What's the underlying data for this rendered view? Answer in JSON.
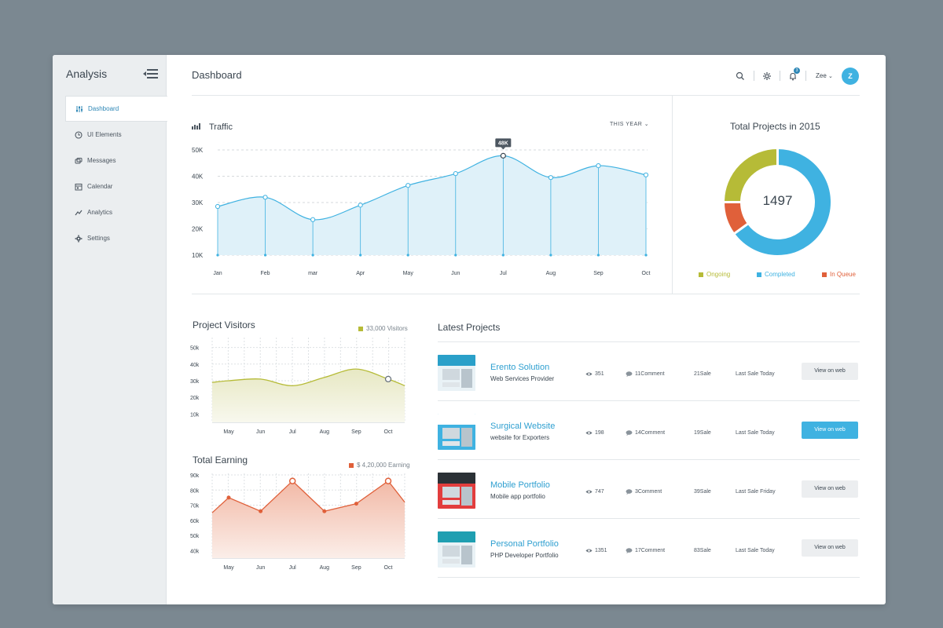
{
  "sidebar": {
    "brand": "Analysis",
    "items": [
      {
        "label": "Dashboard",
        "icon": "sliders-icon"
      },
      {
        "label": "UI Elements",
        "icon": "clock-icon"
      },
      {
        "label": "Messages",
        "icon": "chat-icon"
      },
      {
        "label": "Calendar",
        "icon": "calendar-icon"
      },
      {
        "label": "Analytics",
        "icon": "trend-icon"
      },
      {
        "label": "Settings",
        "icon": "gear-icon"
      }
    ],
    "active_index": 0
  },
  "header": {
    "title": "Dashboard",
    "notification_count": "3",
    "user_name": "Zee",
    "avatar_initial": "Z"
  },
  "traffic": {
    "title": "Traffic",
    "period": "THIS YEAR",
    "tooltip": "48K"
  },
  "total_projects": {
    "title": "Total Projects in 2015",
    "total": "1497",
    "legend": [
      {
        "label": "Ongoing",
        "color": "#b6bb37"
      },
      {
        "label": "Completed",
        "color": "#3fb2e1"
      },
      {
        "label": "In Queue",
        "color": "#e0603a"
      }
    ]
  },
  "visitors": {
    "title": "Project Visitors",
    "legend": "33,000 Visitors"
  },
  "earning": {
    "title": "Total Earning",
    "legend": "$ 4,20,000 Earning"
  },
  "latest": {
    "title": "Latest Projects",
    "projects": [
      {
        "name": "Erento Solution",
        "sub": "Web Services Provider",
        "views": "351",
        "comments": "11Comment",
        "sales": "21Sale",
        "last": "Last Sale Today",
        "button": "View on web",
        "primary": false
      },
      {
        "name": "Surgical Website",
        "sub": "website for Exporters",
        "views": "198",
        "comments": "14Comment",
        "sales": "19Sale",
        "last": "Last Sale Today",
        "button": "View on web",
        "primary": true
      },
      {
        "name": "Mobile Portfolio",
        "sub": "Mobile app portfolio",
        "views": "747",
        "comments": "3Comment",
        "sales": "39Sale",
        "last": "Last Sale Friday",
        "button": "View on web",
        "primary": false
      },
      {
        "name": "Personal Portfolio",
        "sub": "PHP Developer Portfolio",
        "views": "1351",
        "comments": "17Comment",
        "sales": "83Sale",
        "last": "Last Sale Today",
        "button": "View on web",
        "primary": false
      }
    ]
  },
  "chart_data": [
    {
      "type": "area",
      "title": "Traffic",
      "categories": [
        "Jan",
        "Feb",
        "mar",
        "Apr",
        "May",
        "Jun",
        "Jul",
        "Aug",
        "Sep",
        "Oct"
      ],
      "values": [
        28.5,
        32,
        23.5,
        29,
        36.5,
        41,
        47.8,
        39.5,
        44,
        40.5
      ],
      "y_ticks": [
        "10K",
        "20K",
        "30K",
        "40K",
        "50K"
      ],
      "ylim": [
        10,
        50
      ],
      "color": "#3fb2e1"
    },
    {
      "type": "pie",
      "title": "Total Projects in 2015",
      "labels": [
        "Completed",
        "In Queue",
        "Ongoing"
      ],
      "values": [
        65,
        10,
        25
      ],
      "colors": [
        "#3fb2e1",
        "#e0603a",
        "#b6bb37"
      ]
    },
    {
      "type": "area",
      "title": "Project Visitors",
      "categories": [
        "May",
        "Jun",
        "Jul",
        "Aug",
        "Sep",
        "Oct"
      ],
      "values": [
        30,
        31,
        27,
        32,
        37,
        31
      ],
      "y_ticks": [
        "10k",
        "20k",
        "30k",
        "40k",
        "50k"
      ],
      "ylim": [
        5,
        55
      ],
      "color": "#b6bb37"
    },
    {
      "type": "area",
      "title": "Total Earning",
      "categories": [
        "May",
        "Jun",
        "Jul",
        "Aug",
        "Sep",
        "Oct"
      ],
      "values": [
        75,
        66,
        86,
        66,
        71,
        86
      ],
      "y_ticks": [
        "40k",
        "50k",
        "60k",
        "70k",
        "80k",
        "90k"
      ],
      "ylim": [
        35,
        90
      ],
      "color": "#e0603a"
    }
  ]
}
